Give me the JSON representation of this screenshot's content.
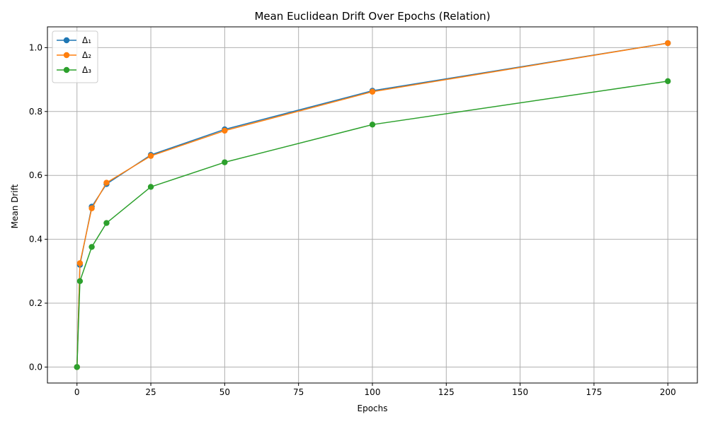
{
  "chart_data": {
    "type": "line",
    "title": "Mean Euclidean Drift Over Epochs (Relation)",
    "xlabel": "Epochs",
    "ylabel": "Mean Drift",
    "x": [
      0,
      1,
      5,
      10,
      25,
      50,
      100,
      200
    ],
    "xlim": [
      -10,
      210
    ],
    "ylim": [
      -0.05,
      1.065
    ],
    "xticks": [
      0,
      25,
      50,
      75,
      100,
      125,
      150,
      175,
      200
    ],
    "xtick_labels": [
      "0",
      "25",
      "50",
      "75",
      "100",
      "125",
      "150",
      "175",
      "200"
    ],
    "yticks": [
      0.0,
      0.2,
      0.4,
      0.6,
      0.8,
      1.0
    ],
    "ytick_labels": [
      "0.0",
      "0.2",
      "0.4",
      "0.6",
      "0.8",
      "1.0"
    ],
    "grid": true,
    "legend_position": "top-left",
    "series": [
      {
        "name": "Δ₁",
        "color": "#1f77b4",
        "values": [
          0.0,
          0.32,
          0.502,
          0.573,
          0.664,
          0.744,
          0.865,
          1.014
        ]
      },
      {
        "name": "Δ₂",
        "color": "#ff7f0e",
        "values": [
          0.0,
          0.325,
          0.497,
          0.577,
          0.661,
          0.74,
          0.862,
          1.014
        ]
      },
      {
        "name": "Δ₃",
        "color": "#2ca02c",
        "values": [
          0.0,
          0.269,
          0.376,
          0.451,
          0.564,
          0.641,
          0.759,
          0.895
        ]
      }
    ]
  }
}
